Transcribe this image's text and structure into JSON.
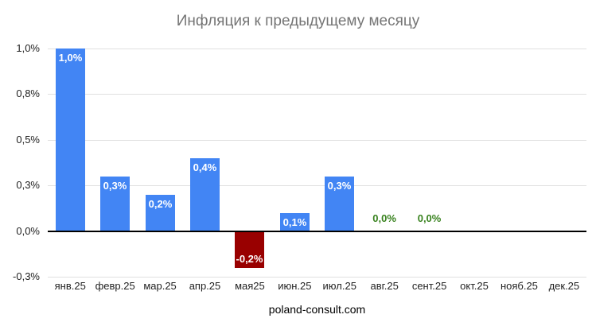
{
  "title": "Инфляция к предыдущему месяцу",
  "source": "poland-consult.com",
  "colors": {
    "positive_bar": "#4285F4",
    "negative_bar": "#990000",
    "zero_value_text": "#38821E",
    "bar_annotation_text": "#FFFFFF",
    "title_text": "#757575",
    "axis_text": "#222222",
    "gridline": "#E0E0E0",
    "zero_line": "#000000",
    "background": "#FFFFFF"
  },
  "chart_data": {
    "type": "bar",
    "title": "Инфляция к предыдущему месяцу",
    "xlabel": "",
    "ylabel": "",
    "categories": [
      "янв.25",
      "февр.25",
      "мар.25",
      "апр.25",
      "мая25",
      "июн.25",
      "июл.25",
      "авг.25",
      "сент.25",
      "окт.25",
      "нояб.25",
      "дек.25"
    ],
    "values": [
      1.0,
      0.3,
      0.2,
      0.4,
      -0.2,
      0.1,
      0.3,
      0.0,
      0.0,
      null,
      null,
      null
    ],
    "value_labels": [
      "1,0%",
      "0,3%",
      "0,2%",
      "0,4%",
      "-0,2%",
      "0,1%",
      "0,3%",
      "0,0%",
      "0,0%",
      "",
      "",
      ""
    ],
    "ylim": [
      -0.25,
      1.0
    ],
    "ytick_values": [
      1.0,
      0.75,
      0.5,
      0.25,
      0.0,
      -0.25
    ],
    "ytick_labels": [
      "1,0%",
      "0,8%",
      "0,5%",
      "0,3%",
      "0,0%",
      "-0,3%"
    ],
    "grid": true,
    "legend": "none",
    "annotation_note": "positive bars blue with white label at top inside; negative bar dark red with white label at bottom inside; zero values shown as green text above axis; null months have no bar"
  }
}
